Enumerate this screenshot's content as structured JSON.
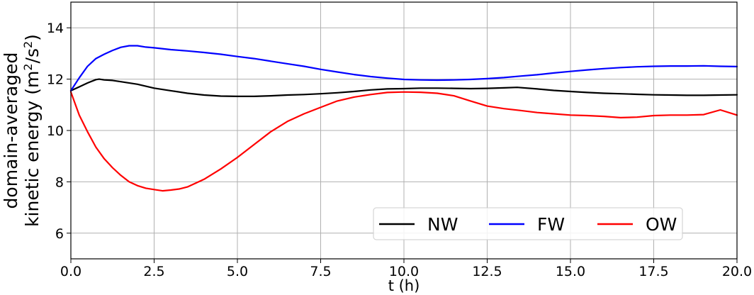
{
  "chart_data": {
    "type": "line",
    "xlabel": "t (h)",
    "ylabel_line1": "domain-averaged",
    "ylabel_line2": "kinetic energy (m",
    "ylabel_sup1": "2",
    "ylabel_mid": "/s",
    "ylabel_sup2": "2",
    "ylabel_end": ")",
    "xlim": [
      0,
      20
    ],
    "ylim": [
      5,
      15
    ],
    "xticks": [
      0,
      2.5,
      5,
      7.5,
      10,
      12.5,
      15,
      17.5,
      20
    ],
    "xtick_labels": [
      "0.0",
      "2.5",
      "5.0",
      "7.5",
      "10.0",
      "12.5",
      "15.0",
      "17.5",
      "20.0"
    ],
    "yticks": [
      6,
      8,
      10,
      12,
      14
    ],
    "ytick_labels": [
      "6",
      "8",
      "10",
      "12",
      "14"
    ],
    "grid": true,
    "legend_position": "lower-right",
    "series": [
      {
        "name": "NW",
        "color": "#000000",
        "x": [
          0,
          0.25,
          0.5,
          0.75,
          0.85,
          1.0,
          1.25,
          1.5,
          2.0,
          2.5,
          3.0,
          3.5,
          4.0,
          4.5,
          5.0,
          5.5,
          6.0,
          6.5,
          7.0,
          7.5,
          8.0,
          8.5,
          9.0,
          9.5,
          10.0,
          10.5,
          11.0,
          11.5,
          12.0,
          12.5,
          13.0,
          13.4,
          14.0,
          14.5,
          15.0,
          15.5,
          16.0,
          16.5,
          17.0,
          17.5,
          18.0,
          18.5,
          19.0,
          19.5,
          20.0
        ],
        "y": [
          11.55,
          11.7,
          11.85,
          11.98,
          12.0,
          11.97,
          11.95,
          11.9,
          11.8,
          11.65,
          11.55,
          11.45,
          11.38,
          11.34,
          11.33,
          11.33,
          11.35,
          11.38,
          11.4,
          11.43,
          11.47,
          11.52,
          11.58,
          11.62,
          11.63,
          11.65,
          11.65,
          11.64,
          11.63,
          11.64,
          11.66,
          11.68,
          11.62,
          11.56,
          11.52,
          11.48,
          11.45,
          11.43,
          11.41,
          11.39,
          11.38,
          11.37,
          11.37,
          11.38,
          11.39
        ]
      },
      {
        "name": "FW",
        "color": "#0000ff",
        "x": [
          0,
          0.25,
          0.5,
          0.75,
          1.0,
          1.25,
          1.5,
          1.75,
          2.0,
          2.25,
          2.5,
          3.0,
          3.5,
          4.0,
          4.5,
          5.0,
          5.5,
          6.0,
          6.5,
          7.0,
          7.5,
          8.0,
          8.5,
          9.0,
          9.5,
          10.0,
          10.5,
          11.0,
          11.5,
          12.0,
          12.5,
          13.0,
          13.5,
          14.0,
          14.5,
          15.0,
          15.5,
          16.0,
          16.5,
          17.0,
          17.5,
          18.0,
          18.5,
          19.0,
          19.5,
          20.0
        ],
        "y": [
          11.55,
          12.05,
          12.5,
          12.8,
          12.97,
          13.12,
          13.24,
          13.3,
          13.3,
          13.25,
          13.22,
          13.15,
          13.1,
          13.04,
          12.97,
          12.88,
          12.8,
          12.7,
          12.6,
          12.5,
          12.38,
          12.28,
          12.18,
          12.1,
          12.04,
          11.99,
          11.97,
          11.96,
          11.97,
          11.99,
          12.02,
          12.06,
          12.12,
          12.17,
          12.24,
          12.3,
          12.36,
          12.41,
          12.45,
          12.48,
          12.5,
          12.51,
          12.51,
          12.52,
          12.5,
          12.49
        ]
      },
      {
        "name": "OW",
        "color": "#ff0000",
        "x": [
          0,
          0.25,
          0.5,
          0.75,
          1.0,
          1.25,
          1.5,
          1.75,
          2.0,
          2.25,
          2.5,
          2.75,
          3.0,
          3.25,
          3.5,
          4.0,
          4.5,
          5.0,
          5.5,
          6.0,
          6.5,
          7.0,
          7.5,
          8.0,
          8.5,
          9.0,
          9.5,
          10.0,
          10.5,
          11.0,
          11.5,
          12.0,
          12.5,
          13.0,
          13.5,
          14.0,
          14.5,
          15.0,
          15.5,
          16.0,
          16.5,
          17.0,
          17.5,
          18.0,
          18.5,
          19.0,
          19.5,
          20.0
        ],
        "y": [
          11.5,
          10.6,
          9.95,
          9.35,
          8.9,
          8.55,
          8.25,
          8.0,
          7.85,
          7.75,
          7.7,
          7.65,
          7.68,
          7.72,
          7.8,
          8.1,
          8.5,
          8.95,
          9.45,
          9.95,
          10.35,
          10.65,
          10.9,
          11.15,
          11.3,
          11.4,
          11.48,
          11.5,
          11.49,
          11.45,
          11.35,
          11.15,
          10.95,
          10.85,
          10.78,
          10.7,
          10.65,
          10.6,
          10.58,
          10.55,
          10.5,
          10.52,
          10.58,
          10.6,
          10.6,
          10.62,
          10.8,
          10.6
        ]
      }
    ]
  }
}
